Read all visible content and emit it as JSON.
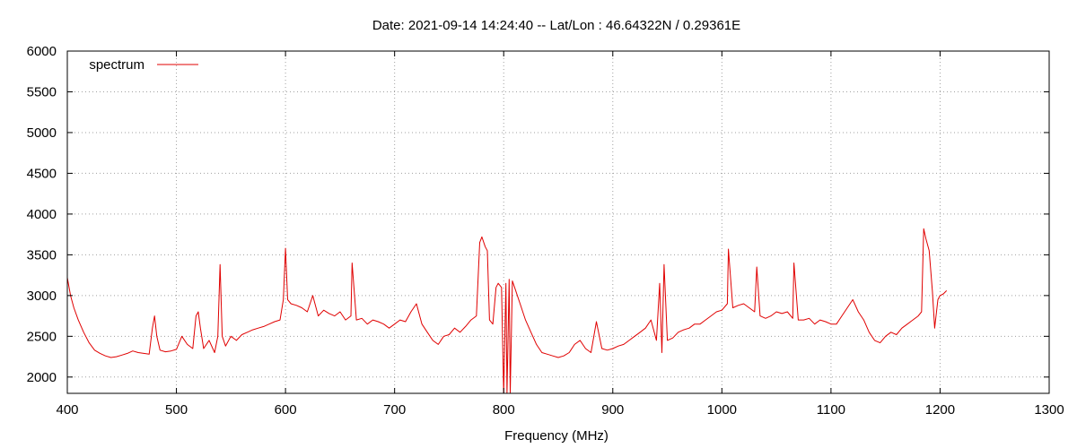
{
  "chart_data": {
    "type": "line",
    "title": "Date: 2021-09-14 14:24:40  --  Lat/Lon : 46.64322N / 0.29361E",
    "xlabel": "Frequency (MHz)",
    "ylabel": "",
    "xlim": [
      400,
      1300
    ],
    "ylim": [
      1800,
      6000
    ],
    "x_ticks": [
      400,
      500,
      600,
      700,
      800,
      900,
      1000,
      1100,
      1200,
      1300
    ],
    "y_ticks": [
      2000,
      2500,
      3000,
      3500,
      4000,
      4500,
      5000,
      5500,
      6000
    ],
    "grid": true,
    "legend_position": "top-left",
    "series": [
      {
        "name": "spectrum",
        "color": "#e00000",
        "x": [
          400,
          403,
          406,
          410,
          415,
          420,
          425,
          430,
          435,
          440,
          445,
          450,
          455,
          460,
          465,
          470,
          475,
          478,
          480,
          482,
          485,
          490,
          495,
          500,
          505,
          510,
          515,
          518,
          520,
          522,
          525,
          530,
          535,
          538,
          540,
          542,
          545,
          550,
          555,
          560,
          565,
          570,
          575,
          580,
          585,
          590,
          595,
          598,
          600,
          602,
          605,
          610,
          615,
          620,
          625,
          630,
          635,
          640,
          645,
          650,
          655,
          660,
          661,
          665,
          670,
          675,
          680,
          685,
          690,
          695,
          700,
          705,
          710,
          715,
          720,
          725,
          730,
          735,
          740,
          745,
          750,
          755,
          760,
          765,
          770,
          775,
          778,
          780,
          783,
          785,
          787,
          790,
          793,
          795,
          798,
          800,
          802,
          803,
          805,
          806,
          808,
          810,
          815,
          820,
          825,
          830,
          835,
          840,
          845,
          850,
          855,
          860,
          865,
          870,
          875,
          880,
          885,
          890,
          895,
          900,
          905,
          910,
          915,
          920,
          925,
          930,
          935,
          940,
          943,
          945,
          947,
          950,
          955,
          960,
          965,
          970,
          975,
          980,
          985,
          990,
          995,
          1000,
          1005,
          1006,
          1010,
          1015,
          1020,
          1025,
          1030,
          1032,
          1035,
          1040,
          1045,
          1050,
          1055,
          1060,
          1065,
          1066,
          1070,
          1075,
          1080,
          1085,
          1090,
          1095,
          1100,
          1105,
          1110,
          1115,
          1120,
          1125,
          1130,
          1135,
          1140,
          1145,
          1150,
          1155,
          1160,
          1165,
          1170,
          1175,
          1180,
          1183,
          1185,
          1187,
          1190,
          1193,
          1195,
          1198,
          1200,
          1203,
          1206
        ],
        "y": [
          3220,
          3000,
          2850,
          2700,
          2550,
          2420,
          2330,
          2290,
          2260,
          2240,
          2250,
          2270,
          2290,
          2320,
          2300,
          2290,
          2280,
          2600,
          2750,
          2500,
          2330,
          2310,
          2320,
          2340,
          2500,
          2400,
          2350,
          2750,
          2800,
          2600,
          2350,
          2450,
          2300,
          2500,
          3380,
          2500,
          2380,
          2500,
          2450,
          2520,
          2550,
          2580,
          2600,
          2620,
          2650,
          2680,
          2700,
          2950,
          3580,
          2950,
          2900,
          2880,
          2850,
          2800,
          3000,
          2750,
          2820,
          2780,
          2750,
          2800,
          2700,
          2750,
          3400,
          2700,
          2720,
          2650,
          2700,
          2680,
          2650,
          2600,
          2650,
          2700,
          2680,
          2800,
          2900,
          2650,
          2550,
          2450,
          2400,
          2500,
          2520,
          2600,
          2550,
          2620,
          2700,
          2750,
          3650,
          3720,
          3600,
          3550,
          2700,
          2650,
          3100,
          3150,
          3100,
          1800,
          3150,
          1800,
          3200,
          1800,
          3180,
          3100,
          2900,
          2700,
          2550,
          2400,
          2300,
          2280,
          2260,
          2240,
          2260,
          2300,
          2400,
          2450,
          2350,
          2300,
          2680,
          2350,
          2330,
          2350,
          2380,
          2400,
          2450,
          2500,
          2550,
          2600,
          2700,
          2450,
          3150,
          2300,
          3380,
          2450,
          2480,
          2550,
          2580,
          2600,
          2650,
          2650,
          2700,
          2750,
          2800,
          2820,
          2900,
          3570,
          2850,
          2880,
          2900,
          2850,
          2800,
          3350,
          2750,
          2720,
          2750,
          2800,
          2780,
          2800,
          2720,
          3400,
          2700,
          2700,
          2720,
          2650,
          2700,
          2680,
          2650,
          2650,
          2750,
          2850,
          2950,
          2800,
          2700,
          2550,
          2450,
          2420,
          2500,
          2550,
          2520,
          2600,
          2650,
          2700,
          2750,
          2800,
          3820,
          3700,
          3550,
          3050,
          2600,
          2950,
          3000,
          3020,
          3060
        ]
      }
    ]
  }
}
